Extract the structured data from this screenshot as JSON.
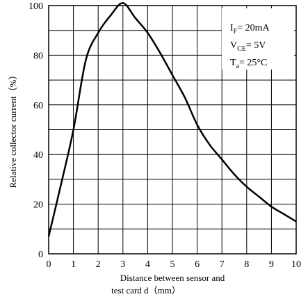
{
  "chart_data": {
    "type": "line",
    "title": "",
    "xlabel_line1": "Distance between sensor and",
    "xlabel_line2": "test card d（mm）",
    "ylabel": "Relative collector current（%）",
    "xlim": [
      0,
      10
    ],
    "ylim": [
      0,
      100
    ],
    "x_ticks": [
      "0",
      "1",
      "2",
      "3",
      "4",
      "5",
      "6",
      "7",
      "8",
      "9",
      "10"
    ],
    "y_ticks": [
      "0",
      "20",
      "40",
      "60",
      "80",
      "100"
    ],
    "grid": true,
    "series": [
      {
        "x": [
          0,
          0.5,
          1.0,
          1.5,
          2.0,
          2.5,
          3.0,
          3.5,
          4.0,
          4.5,
          5.0,
          5.5,
          6.0,
          6.5,
          7.0,
          7.5,
          8.0,
          8.5,
          9.0,
          9.5,
          10.0
        ],
        "y": [
          7,
          28,
          50,
          78,
          89,
          96,
          101,
          95,
          89,
          81,
          72,
          63,
          52,
          44,
          38,
          32,
          27,
          23,
          19,
          16,
          13
        ]
      }
    ],
    "color": "#000000"
  },
  "conditions": {
    "if": {
      "main": "I",
      "sub": "F",
      "tail": "= 20mA"
    },
    "vce": {
      "main": "V",
      "sub": "CE",
      "tail": "= 5V"
    },
    "ta": {
      "main": "T",
      "sub": "a",
      "tail": "= 25°C"
    }
  }
}
